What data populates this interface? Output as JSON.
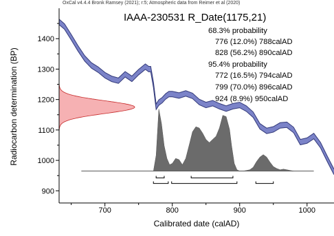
{
  "chart_data": {
    "type": "area",
    "header": "OxCal v4.4.4 Bronk Ramsey (2021); r:5; Atmospheric data from Reimer et al (2020)",
    "title": "IAAA-230531 R_Date(1175,21)",
    "xlabel": "Calibrated date (calAD)",
    "ylabel": "Radiocarbon determination (BP)",
    "xlim": [
      632,
      1040
    ],
    "ylim": [
      860,
      1500
    ],
    "x_ticks": [
      700,
      800,
      900,
      1000
    ],
    "y_ticks": [
      900,
      1000,
      1100,
      1200,
      1300,
      1400
    ],
    "colors": {
      "calibration": "#7b83c8",
      "calibration_edge": "#333a7a",
      "measurement": "#f4a3a6",
      "measurement_edge": "#c62828",
      "posterior": "#6b6b6b"
    },
    "annotations": {
      "p68_heading": "68.3% probability",
      "p68_lines": [
        "776 (12.0%) 788calAD",
        "828 (56.2%) 890calAD"
      ],
      "p95_heading": "95.4% probability",
      "p95_lines": [
        "772 (16.5%) 794calAD",
        "799 (70.0%) 896calAD",
        "924 (8.9%) 950calAD"
      ]
    },
    "measurement": {
      "mean_bp": 1175,
      "sd_bp": 21
    },
    "calibration_curve": {
      "x": [
        632,
        640,
        650,
        660,
        670,
        680,
        690,
        700,
        710,
        720,
        730,
        740,
        750,
        760,
        765,
        768,
        772,
        776,
        780,
        785,
        790,
        795,
        800,
        810,
        820,
        830,
        840,
        850,
        860,
        870,
        880,
        890,
        900,
        910,
        920,
        930,
        940,
        950,
        960,
        970,
        980,
        990,
        1000,
        1010,
        1020,
        1030,
        1040
      ],
      "bp": [
        1455,
        1440,
        1405,
        1368,
        1335,
        1312,
        1298,
        1280,
        1268,
        1262,
        1283,
        1268,
        1290,
        1308,
        1300,
        1300,
        1248,
        1176,
        1190,
        1198,
        1210,
        1218,
        1218,
        1213,
        1220,
        1212,
        1192,
        1182,
        1188,
        1178,
        1170,
        1178,
        1182,
        1170,
        1150,
        1112,
        1097,
        1102,
        1115,
        1117,
        1100,
        1060,
        1065,
        1080,
        1050,
        1005,
        962
      ],
      "halfwidth": 9
    },
    "posterior": {
      "baseline_x": [
        665,
        1010
      ],
      "x": [
        772,
        776,
        780,
        784,
        788,
        792,
        796,
        800,
        805,
        810,
        815,
        820,
        826,
        830,
        835,
        840,
        845,
        850,
        855,
        860,
        865,
        870,
        875,
        880,
        885,
        888,
        892,
        896,
        900,
        905,
        910,
        915,
        920,
        925,
        930,
        935,
        940,
        945,
        950,
        955,
        960,
        965,
        970,
        975,
        980
      ],
      "density": [
        0,
        0.25,
        0.98,
        0.75,
        0.4,
        0.2,
        0.1,
        0.12,
        0.2,
        0.18,
        0.1,
        0.2,
        0.45,
        0.62,
        0.7,
        0.68,
        0.6,
        0.5,
        0.45,
        0.5,
        0.55,
        0.68,
        0.88,
        0.86,
        0.66,
        0.4,
        0.12,
        0.02,
        0,
        0,
        0.01,
        0.02,
        0.06,
        0.15,
        0.22,
        0.26,
        0.22,
        0.14,
        0.07,
        0.04,
        0.02,
        0.03,
        0.02,
        0.01,
        0
      ],
      "range_68": [
        [
          776,
          788
        ],
        [
          828,
          890
        ]
      ],
      "range_95": [
        [
          772,
          794
        ],
        [
          799,
          896
        ],
        [
          924,
          950
        ]
      ]
    },
    "grid": false,
    "legend": "none"
  }
}
